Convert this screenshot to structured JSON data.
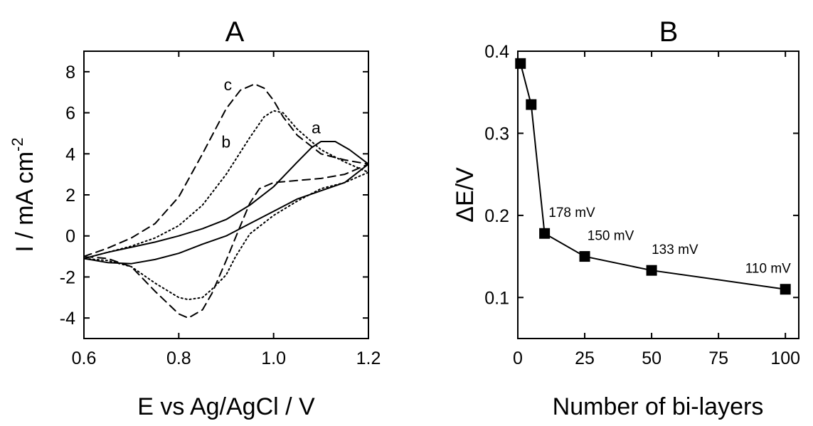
{
  "chart_data": [
    {
      "type": "line",
      "panel": "A",
      "title": "A",
      "xlabel": "E vs Ag/AgCl / V",
      "ylabel": "I / mA cm",
      "ylabel_sup": "-2",
      "xlim": [
        0.6,
        1.2
      ],
      "ylim": [
        -5,
        9
      ],
      "xticks": [
        0.6,
        0.8,
        1.0,
        1.2
      ],
      "xtick_labels": [
        "0.6",
        "0.8",
        "1.0",
        "1.2"
      ],
      "yticks": [
        -4,
        -2,
        0,
        2,
        4,
        6,
        8
      ],
      "ytick_labels": [
        "-4",
        "-2",
        "0",
        "2",
        "4",
        "6",
        "8"
      ],
      "grid": false,
      "series": [
        {
          "name": "a",
          "style": "solid",
          "x": [
            0.6,
            0.65,
            0.7,
            0.75,
            0.8,
            0.85,
            0.9,
            0.95,
            1.0,
            1.05,
            1.08,
            1.1,
            1.13,
            1.16,
            1.2,
            1.15,
            1.1,
            1.05,
            1.0,
            0.95,
            0.9,
            0.85,
            0.8,
            0.75,
            0.7,
            0.65,
            0.6
          ],
          "y": [
            -1.1,
            -0.8,
            -0.55,
            -0.3,
            0.0,
            0.35,
            0.8,
            1.5,
            2.4,
            3.6,
            4.3,
            4.6,
            4.6,
            4.2,
            3.5,
            2.6,
            2.2,
            1.8,
            1.2,
            0.6,
            0.0,
            -0.4,
            -0.85,
            -1.15,
            -1.35,
            -1.3,
            -1.1
          ],
          "label_x": 1.08,
          "label_y": 5.0
        },
        {
          "name": "b",
          "style": "dotted",
          "x": [
            0.6,
            0.65,
            0.7,
            0.75,
            0.8,
            0.85,
            0.9,
            0.95,
            0.98,
            1.0,
            1.02,
            1.05,
            1.1,
            1.15,
            1.2,
            1.15,
            1.1,
            1.05,
            1.0,
            0.95,
            0.92,
            0.9,
            0.87,
            0.85,
            0.82,
            0.8,
            0.75,
            0.7,
            0.65,
            0.6
          ],
          "y": [
            -1.1,
            -0.8,
            -0.5,
            -0.1,
            0.5,
            1.5,
            3.0,
            4.8,
            5.8,
            6.1,
            6.0,
            5.2,
            4.2,
            3.6,
            3.1,
            2.6,
            2.3,
            1.7,
            1.0,
            0.1,
            -1.0,
            -1.9,
            -2.6,
            -3.0,
            -3.1,
            -3.0,
            -2.3,
            -1.5,
            -1.2,
            -1.1
          ],
          "label_x": 0.89,
          "label_y": 4.3
        },
        {
          "name": "c",
          "style": "dashed",
          "x": [
            0.6,
            0.65,
            0.7,
            0.75,
            0.8,
            0.85,
            0.9,
            0.93,
            0.96,
            0.98,
            1.0,
            1.02,
            1.05,
            1.1,
            1.15,
            1.2,
            1.15,
            1.1,
            1.05,
            1.0,
            0.97,
            0.95,
            0.93,
            0.9,
            0.87,
            0.85,
            0.82,
            0.8,
            0.75,
            0.7,
            0.65,
            0.6
          ],
          "y": [
            -1.0,
            -0.6,
            -0.1,
            0.6,
            1.9,
            4.0,
            6.2,
            7.1,
            7.4,
            7.2,
            6.6,
            5.8,
            4.9,
            4.0,
            3.7,
            3.5,
            3.0,
            2.8,
            2.7,
            2.6,
            2.3,
            1.6,
            0.5,
            -1.2,
            -2.8,
            -3.6,
            -4.0,
            -3.8,
            -2.7,
            -1.5,
            -1.1,
            -1.0
          ],
          "label_x": 0.895,
          "label_y": 7.1
        }
      ]
    },
    {
      "type": "line",
      "panel": "B",
      "title": "B",
      "xlabel": "Number of bi-layers",
      "ylabel": "ΔE/V",
      "xlim": [
        0,
        105
      ],
      "ylim": [
        0.05,
        0.4
      ],
      "xticks": [
        0,
        25,
        50,
        75,
        100
      ],
      "xtick_labels": [
        "0",
        "25",
        "50",
        "75",
        "100"
      ],
      "yticks": [
        0.1,
        0.2,
        0.3,
        0.4
      ],
      "ytick_labels": [
        "0.1",
        "0.2",
        "0.3",
        "0.4"
      ],
      "grid": false,
      "marker": "square",
      "x": [
        1,
        5,
        10,
        25,
        50,
        100
      ],
      "y": [
        0.385,
        0.335,
        0.178,
        0.15,
        0.133,
        0.11
      ],
      "annotations": [
        {
          "text": "178 mV",
          "x": 11.5,
          "y": 0.198
        },
        {
          "text": "150 mV",
          "x": 26,
          "y": 0.17
        },
        {
          "text": "133 mV",
          "x": 50,
          "y": 0.153
        },
        {
          "text": "110 mV",
          "x": 85,
          "y": 0.13
        }
      ]
    }
  ]
}
